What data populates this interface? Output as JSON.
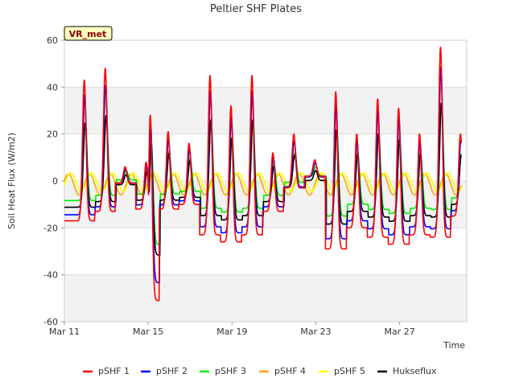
{
  "chart_data": {
    "type": "line",
    "title": "Peltier SHF Plates",
    "xlabel": "Time",
    "ylabel": "Soil Heat Flux (W/m2)",
    "badge": "VR_met",
    "x_unit": "days since Mar 11",
    "xlim": [
      0,
      19.2
    ],
    "ylim": [
      -60,
      60
    ],
    "yticks": [
      -60,
      -40,
      -20,
      0,
      20,
      40,
      60
    ],
    "xticks": [
      {
        "value": 0,
        "label": "Mar 11"
      },
      {
        "value": 4,
        "label": "Mar 15"
      },
      {
        "value": 8,
        "label": "Mar 19"
      },
      {
        "value": 12,
        "label": "Mar 23"
      },
      {
        "value": 16,
        "label": "Mar 27"
      }
    ],
    "grid": true,
    "bands": true,
    "legend_position": "bottom",
    "peaks": [
      {
        "day": 0.95,
        "peak": 43,
        "trough": -17
      },
      {
        "day": 1.95,
        "peak": 48,
        "trough": -13
      },
      {
        "day": 2.9,
        "peak": 6,
        "trough": -1
      },
      {
        "day": 3.9,
        "peak": 8,
        "trough": -12
      },
      {
        "day": 4.1,
        "peak": 28,
        "trough": -51
      },
      {
        "day": 4.95,
        "peak": 21,
        "trough": -12
      },
      {
        "day": 5.95,
        "peak": 16,
        "trough": -10
      },
      {
        "day": 6.95,
        "peak": 45,
        "trough": -23
      },
      {
        "day": 7.95,
        "peak": 32,
        "trough": -26
      },
      {
        "day": 8.95,
        "peak": 45,
        "trough": -23
      },
      {
        "day": 9.95,
        "peak": 12,
        "trough": -13
      },
      {
        "day": 10.95,
        "peak": 20,
        "trough": -3
      },
      {
        "day": 11.95,
        "peak": 9,
        "trough": 2
      },
      {
        "day": 12.95,
        "peak": 38,
        "trough": -29
      },
      {
        "day": 13.95,
        "peak": 20,
        "trough": -20
      },
      {
        "day": 14.95,
        "peak": 35,
        "trough": -24
      },
      {
        "day": 15.95,
        "peak": 31,
        "trough": -27
      },
      {
        "day": 16.95,
        "peak": 20,
        "trough": -23
      },
      {
        "day": 17.95,
        "peak": 57,
        "trough": -24
      },
      {
        "day": 18.9,
        "peak": 20,
        "trough": -15
      }
    ],
    "series": [
      {
        "name": "pSHF 1",
        "color": "#ff0000",
        "scale": 1.0,
        "lag": 0.0,
        "offset": 0
      },
      {
        "name": "pSHF 2",
        "color": "#0000ff",
        "scale": 0.85,
        "lag": 0.02,
        "offset": 0
      },
      {
        "name": "pSHF 3",
        "color": "#00ee00",
        "scale": 0.55,
        "lag": 0.05,
        "offset": 1
      },
      {
        "name": "pSHF 4",
        "color": "#ffa500",
        "scale": 0.2,
        "lag": 0.25,
        "offset": 0
      },
      {
        "name": "pSHF 5",
        "color": "#ffff00",
        "scale": 0.15,
        "lag": 0.35,
        "offset": 0
      },
      {
        "name": "Hukseflux",
        "color": "#000000",
        "scale": 0.6,
        "lag": 0.04,
        "offset": -1
      }
    ]
  }
}
